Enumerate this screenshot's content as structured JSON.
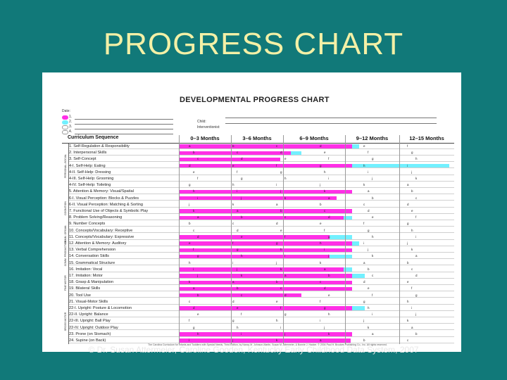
{
  "slide_title": "PROGRESS CHART",
  "doc_title": "DEVELOPMENTAL PROGRESS CHART",
  "date_label": "Date:",
  "date_rows": [
    "1.",
    "2.",
    "3.",
    "4."
  ],
  "child_label": "Child:",
  "interventionist_label": "Interventionist:",
  "curriculum_header": "Curriculum Sequence",
  "age_headers": [
    "0–3 Months",
    "3–6 Months",
    "6–9 Months",
    "9–12 Months",
    "12–15 Months"
  ],
  "colors": {
    "shaded": "#ff2fe6",
    "highlight": "#72f0ff"
  },
  "domains": [
    "PERSONAL–SOCIAL",
    "COGNITION",
    "COMM. ORGAN.",
    "COMM. PRODUCTION",
    "FINE MOTOR",
    "GROSS MOTOR"
  ],
  "items": [
    "1.   Self-Regulation & Responsibility",
    "2.   Interpersonal Skills",
    "3.   Self-Concept",
    "4-I.  Self-Help: Eating",
    "4-II.  Self-Help: Dressing",
    "4-III. Self-Help: Grooming",
    "4-IV. Self-Help: Toileting",
    "5.   Attention & Memory: Visual/Spatial",
    "6-I.  Visual Perception: Blocks & Puzzles",
    "6-II. Visual Perception: Matching & Sorting",
    "7.   Functional Use of Objects & Symbolic Play",
    "8.   Problem Solving/Reasoning",
    "9.   Number Concepts",
    "10.  Concepts/Vocabulary: Receptive",
    "11.  Concepts/Vocabulary: Expressive",
    "12.  Attention & Memory: Auditory",
    "13.  Verbal Comprehension",
    "14.  Conversation Skills",
    "15.  Grammatical Structure",
    "16.  Imitation: Vocal",
    "17.  Imitation: Motor",
    "18.  Grasp & Manipulation",
    "19.  Bilateral Skills",
    "20.  Tool Use",
    "21.  Visual-Motor Skills",
    "22-I. Upright: Posture & Locomotion",
    "22-II. Upright: Balance",
    "22-III. Upright: Ball Play",
    "22-IV. Upright: Outdoor Play",
    "23.  Prone (on Stomach)",
    "24.  Supine (on Back)"
  ],
  "footnote": "The Carolina Curriculum for Infants and Toddlers with Special Needs, Third Edition, by Nancy M. Johnson-Martin, Susan M. Attermeier, & Bonnie J. Hacker. © 2004 Paul H. Brookes Publishing Co., Inc. All rights reserved.",
  "credit": "© Dr. Susan Attermeier, Caroline Gooden, Kentucky Early Childhood Data System, 2007"
}
